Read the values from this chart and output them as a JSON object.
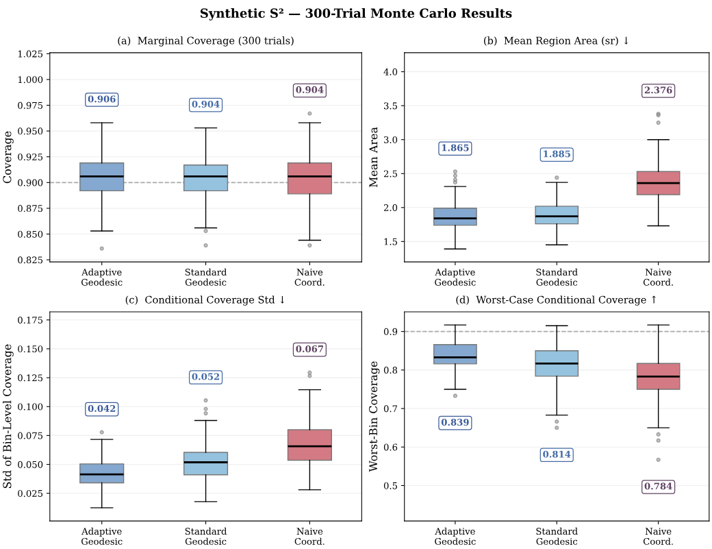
{
  "chart_data": [
    {
      "type": "box",
      "title": "Synthetic S² — 300-Trial Monte Carlo Results",
      "subtitle": "(a)  Marginal Coverage (300 trials)",
      "ylabel": "Coverage",
      "categories": [
        "Adaptive\nGeodesic",
        "Standard\nGeodesic",
        "Naive\nCoord."
      ],
      "colors": [
        "#84a8cf",
        "#95c2de",
        "#d47a84"
      ],
      "boxes": [
        {
          "low": 0.853,
          "q1": 0.892,
          "median": 0.906,
          "q3": 0.919,
          "high": 0.958,
          "outliers": [
            0.836
          ]
        },
        {
          "low": 0.856,
          "q1": 0.892,
          "median": 0.906,
          "q3": 0.917,
          "high": 0.953,
          "outliers": [
            0.853,
            0.839
          ]
        },
        {
          "low": 0.844,
          "q1": 0.889,
          "median": 0.906,
          "q3": 0.919,
          "high": 0.958,
          "outliers": [
            0.967,
            0.839
          ]
        }
      ],
      "value_labels": [
        "0.906",
        "0.904",
        "0.904"
      ],
      "ref_lines": [
        {
          "axis": "y",
          "value": 0.9,
          "color": "#aaaaaa",
          "line_style": "dashed"
        }
      ],
      "ylim": [
        0.823,
        1.026
      ],
      "yticks": [
        {
          "value": 0.825,
          "label": "0.825"
        },
        {
          "value": 0.85,
          "label": "0.850"
        },
        {
          "value": 0.875,
          "label": "0.875"
        },
        {
          "value": 0.9,
          "label": "0.900"
        },
        {
          "value": 0.925,
          "label": "0.925"
        },
        {
          "value": 0.95,
          "label": "0.950"
        },
        {
          "value": 0.975,
          "label": "0.975"
        },
        {
          "value": 1.0,
          "label": "1.000"
        },
        {
          "value": 1.025,
          "label": "1.025"
        }
      ],
      "grid": "y"
    },
    {
      "type": "box",
      "title": "(b)  Mean Region Area (sr) ↓",
      "ylabel": "Mean Area",
      "categories": [
        "Adaptive\nGeodesic",
        "Standard\nGeodesic",
        "Naive\nCoord."
      ],
      "colors": [
        "#84a8cf",
        "#95c2de",
        "#d47a84"
      ],
      "boxes": [
        {
          "low": 1.39,
          "q1": 1.74,
          "median": 1.84,
          "q3": 1.99,
          "high": 2.31,
          "outliers": [
            2.53,
            2.47,
            2.41,
            2.37
          ]
        },
        {
          "low": 1.45,
          "q1": 1.76,
          "median": 1.87,
          "q3": 2.02,
          "high": 2.37,
          "outliers": [
            2.44
          ]
        },
        {
          "low": 1.73,
          "q1": 2.19,
          "median": 2.36,
          "q3": 2.53,
          "high": 3.0,
          "outliers": [
            3.38,
            3.36,
            3.25
          ]
        }
      ],
      "value_labels": [
        "1.865",
        "1.885",
        "2.376"
      ],
      "ylim": [
        1.2,
        4.28
      ],
      "yticks": [
        {
          "value": 1.5,
          "label": "1.5"
        },
        {
          "value": 2.0,
          "label": "2.0"
        },
        {
          "value": 2.5,
          "label": "2.5"
        },
        {
          "value": 3.0,
          "label": "3.0"
        },
        {
          "value": 3.5,
          "label": "3.5"
        },
        {
          "value": 4.0,
          "label": "4.0"
        }
      ],
      "grid": "y"
    },
    {
      "type": "box",
      "title": "(c)  Conditional Coverage Std ↓",
      "ylabel": "Std of Bin-Level Coverage",
      "categories": [
        "Adaptive\nGeodesic",
        "Standard\nGeodesic",
        "Naive\nCoord."
      ],
      "colors": [
        "#84a8cf",
        "#95c2de",
        "#d47a84"
      ],
      "boxes": [
        {
          "low": 0.0124,
          "q1": 0.034,
          "median": 0.0414,
          "q3": 0.0504,
          "high": 0.0716,
          "outliers": [
            0.0778
          ]
        },
        {
          "low": 0.0178,
          "q1": 0.041,
          "median": 0.0518,
          "q3": 0.0604,
          "high": 0.088,
          "outliers": [
            0.1054,
            0.098,
            0.0942
          ]
        },
        {
          "low": 0.028,
          "q1": 0.0536,
          "median": 0.0656,
          "q3": 0.08,
          "high": 0.1146,
          "outliers": [
            0.1294,
            0.1266
          ]
        }
      ],
      "value_labels": [
        "0.042",
        "0.052",
        "0.067"
      ],
      "ylim": [
        0.001,
        0.182
      ],
      "yticks": [
        {
          "value": 0.025,
          "label": "0.025"
        },
        {
          "value": 0.05,
          "label": "0.050"
        },
        {
          "value": 0.075,
          "label": "0.075"
        },
        {
          "value": 0.1,
          "label": "0.100"
        },
        {
          "value": 0.125,
          "label": "0.125"
        },
        {
          "value": 0.15,
          "label": "0.150"
        },
        {
          "value": 0.175,
          "label": "0.175"
        }
      ],
      "grid": "y"
    },
    {
      "type": "box",
      "title": "(d)  Worst-Case Conditional Coverage ↑",
      "ylabel": "Worst-Bin Coverage",
      "categories": [
        "Adaptive\nGeodesic",
        "Standard\nGeodesic",
        "Naive\nCoord."
      ],
      "colors": [
        "#84a8cf",
        "#95c2de",
        "#d47a84"
      ],
      "boxes": [
        {
          "low": 0.75,
          "q1": 0.816,
          "median": 0.833,
          "q3": 0.866,
          "high": 0.917,
          "outliers": [
            0.733
          ]
        },
        {
          "low": 0.683,
          "q1": 0.784,
          "median": 0.817,
          "q3": 0.85,
          "high": 0.915,
          "outliers": [
            0.666,
            0.65
          ]
        },
        {
          "low": 0.65,
          "q1": 0.75,
          "median": 0.783,
          "q3": 0.817,
          "high": 0.917,
          "outliers": [
            0.633,
            0.617,
            0.567
          ]
        }
      ],
      "value_labels": [
        "0.839",
        "0.814",
        "0.784"
      ],
      "ref_lines": [
        {
          "axis": "y",
          "value": 0.9,
          "color": "#aaaaaa",
          "line_style": "dashed"
        }
      ],
      "ylim": [
        0.408,
        0.951
      ],
      "yticks": [
        {
          "value": 0.5,
          "label": "0.5"
        },
        {
          "value": 0.6,
          "label": "0.6"
        },
        {
          "value": 0.7,
          "label": "0.7"
        },
        {
          "value": 0.8,
          "label": "0.8"
        },
        {
          "value": 0.9,
          "label": "0.9"
        }
      ],
      "grid": "y"
    }
  ]
}
